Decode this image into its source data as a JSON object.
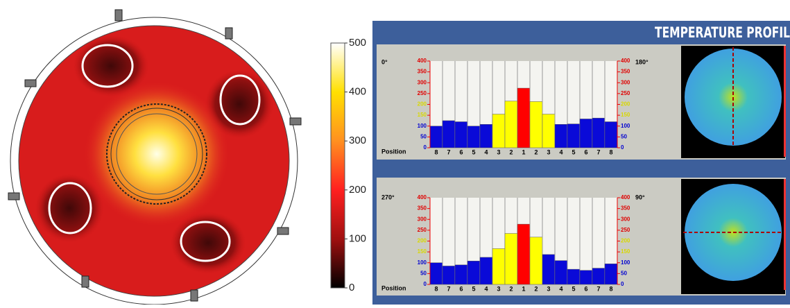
{
  "panel": {
    "title": "TEMPERATURE PROFIL"
  },
  "chart_data": [
    {
      "type": "colorbar",
      "ylim": [
        0,
        500
      ],
      "yticks": [
        0,
        100,
        200,
        300,
        400,
        500
      ]
    },
    {
      "type": "bar",
      "left_label": "0°",
      "right_label": "180°",
      "x_label": "Position",
      "categories": [
        "8",
        "7",
        "6",
        "5",
        "4",
        "3",
        "2",
        "1",
        "2",
        "3",
        "4",
        "5",
        "6",
        "7",
        "8"
      ],
      "values": [
        100,
        125,
        120,
        100,
        108,
        155,
        215,
        275,
        213,
        155,
        108,
        110,
        133,
        137,
        120
      ],
      "colors": [
        "#0a0ad8",
        "#0a0ad8",
        "#0a0ad8",
        "#0a0ad8",
        "#0a0ad8",
        "#ffff00",
        "#ffff00",
        "#ff0000",
        "#ffff00",
        "#ffff00",
        "#0a0ad8",
        "#0a0ad8",
        "#0a0ad8",
        "#0a0ad8",
        "#0a0ad8"
      ],
      "ylim": [
        0,
        400
      ],
      "yticks": [
        0,
        50,
        100,
        150,
        200,
        250,
        300,
        350,
        400
      ]
    },
    {
      "type": "bar",
      "left_label": "270°",
      "right_label": "90°",
      "x_label": "Position",
      "categories": [
        "8",
        "7",
        "6",
        "5",
        "4",
        "3",
        "2",
        "1",
        "2",
        "3",
        "4",
        "5",
        "6",
        "7",
        "8"
      ],
      "values": [
        100,
        85,
        90,
        108,
        125,
        165,
        235,
        278,
        218,
        138,
        110,
        70,
        65,
        75,
        95
      ],
      "colors": [
        "#0a0ad8",
        "#0a0ad8",
        "#0a0ad8",
        "#0a0ad8",
        "#0a0ad8",
        "#ffff00",
        "#ffff00",
        "#ff0000",
        "#ffff00",
        "#0a0ad8",
        "#0a0ad8",
        "#0a0ad8",
        "#0a0ad8",
        "#0a0ad8",
        "#0a0ad8"
      ],
      "ylim": [
        0,
        400
      ],
      "yticks": [
        0,
        50,
        100,
        150,
        200,
        250,
        300,
        350,
        400
      ]
    }
  ]
}
